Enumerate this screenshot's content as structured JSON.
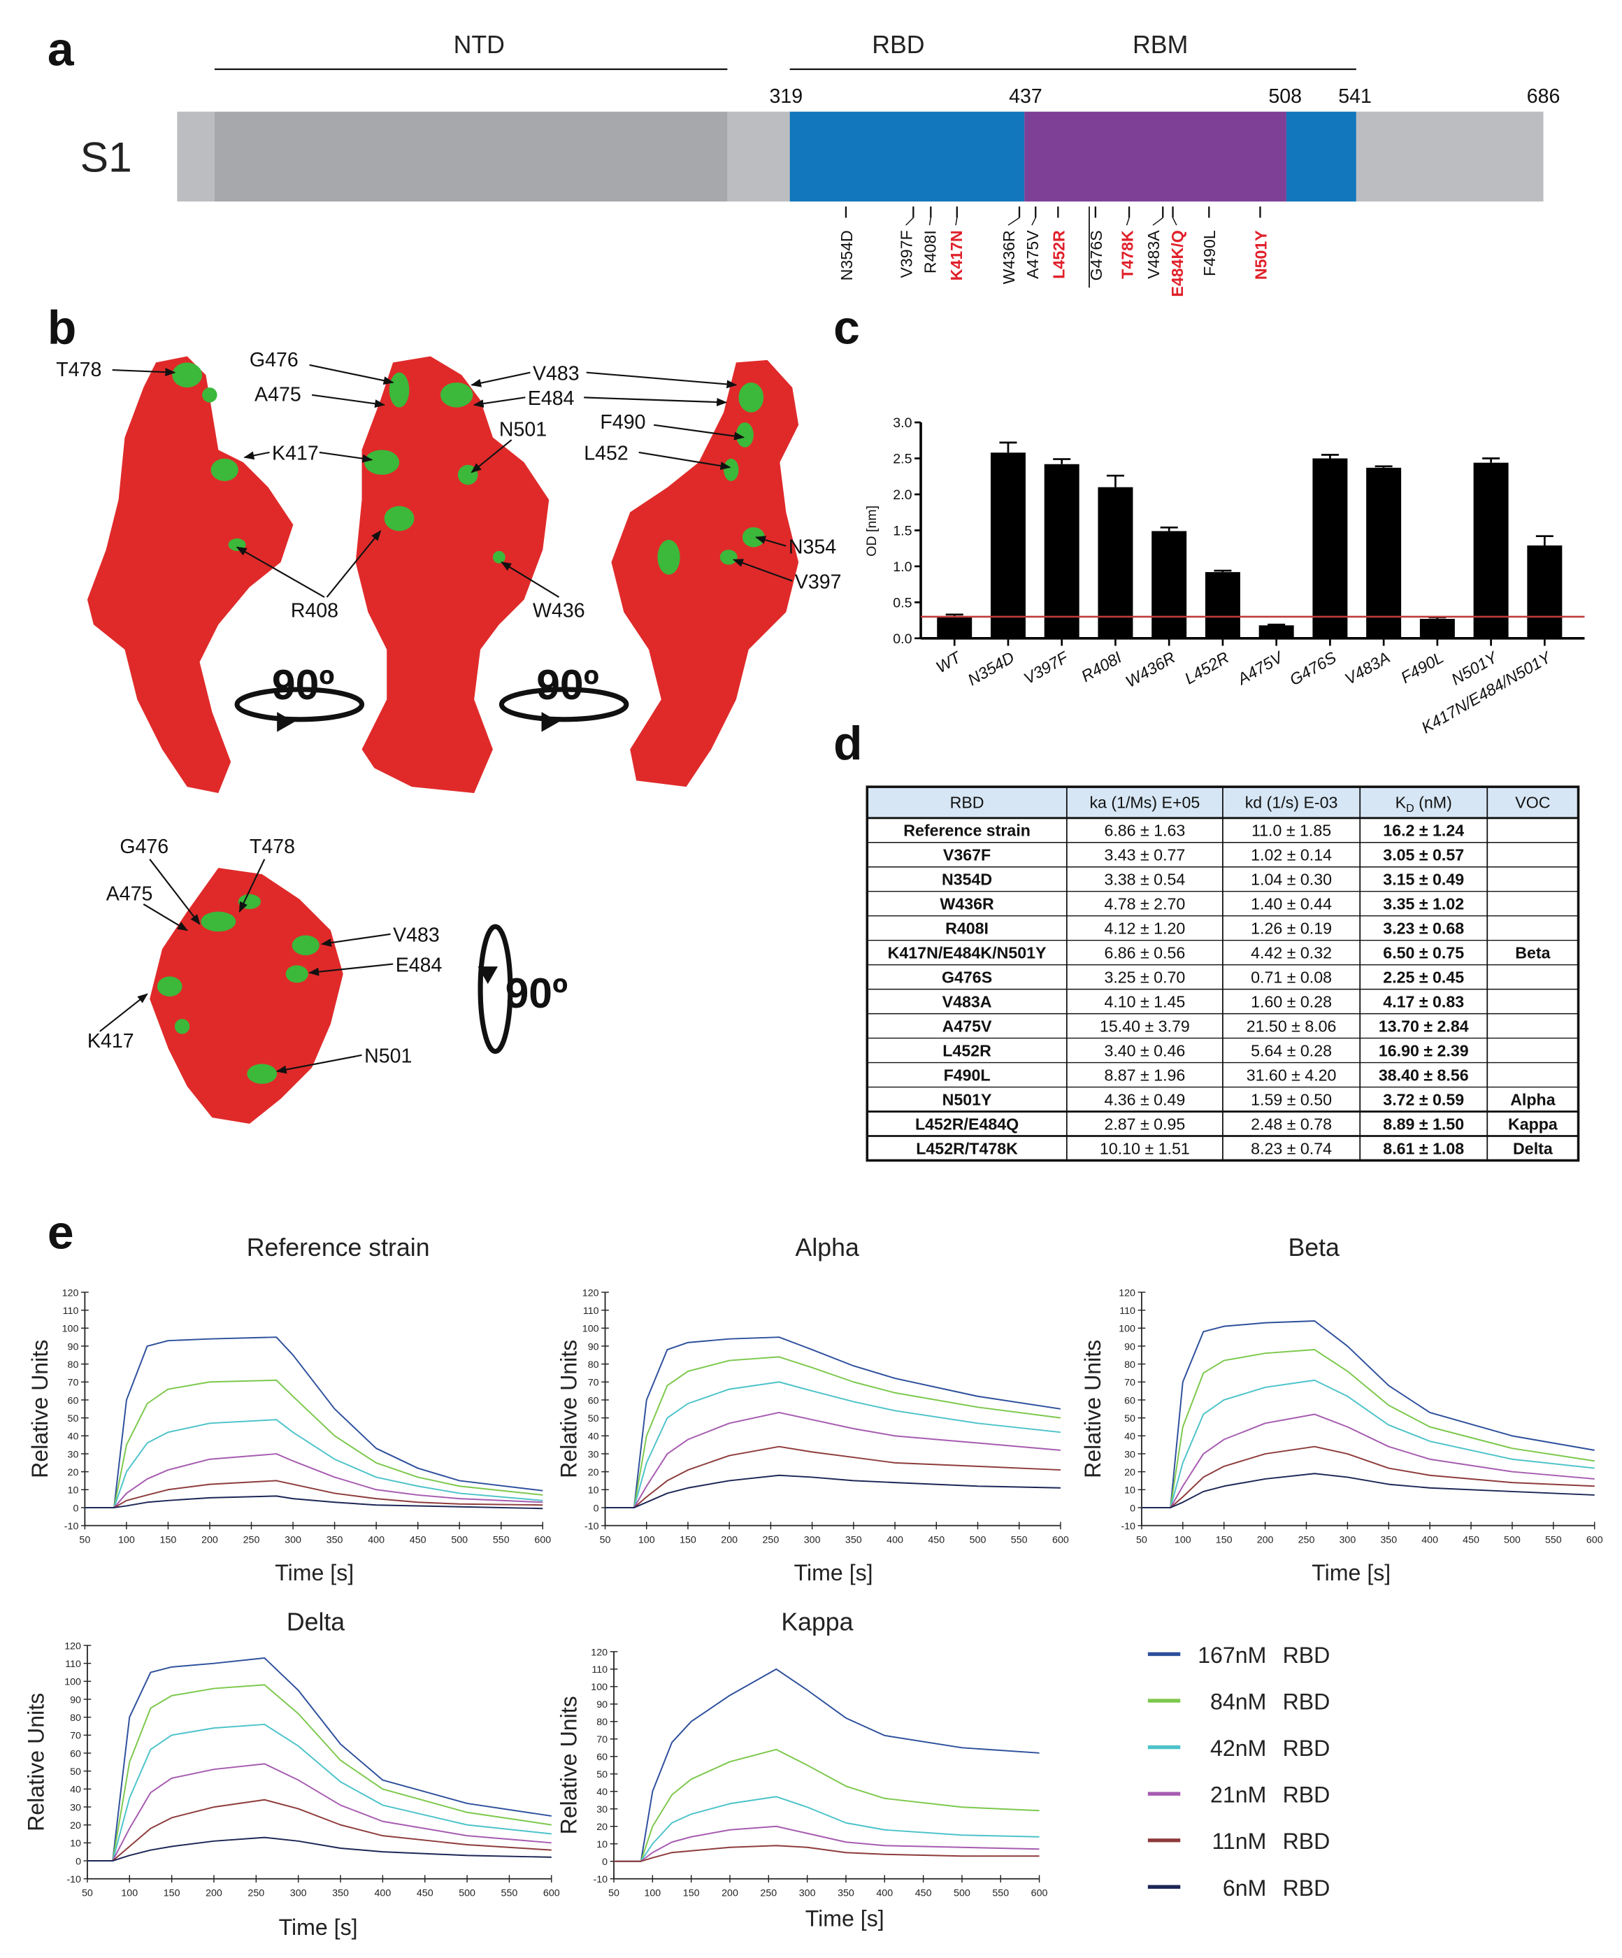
{
  "panel_labels": {
    "a": "a",
    "b": "b",
    "c": "c",
    "d": "d",
    "e": "e"
  },
  "panel_a": {
    "protein": "S1",
    "domains": {
      "ntd": "NTD",
      "rbd": "RBD",
      "rbm": "RBM"
    },
    "positions": [
      "319",
      "437",
      "508",
      "541",
      "686"
    ],
    "colors": {
      "flank": "#bcbdc0",
      "ntd": "#a7a8ab",
      "rbd": "#1277bc",
      "rbm": "#7e3f97"
    },
    "mutations": [
      {
        "label": "N354D",
        "highlight": false
      },
      {
        "label": "V397F",
        "highlight": false
      },
      {
        "label": "R408I",
        "highlight": false
      },
      {
        "label": "K417N",
        "highlight": true
      },
      {
        "label": "W436R",
        "highlight": false
      },
      {
        "label": "A475V",
        "highlight": false
      },
      {
        "label": "L452R",
        "highlight": true
      },
      {
        "label": "G476S",
        "highlight": false
      },
      {
        "label": "T478K",
        "highlight": true
      },
      {
        "label": "V483A",
        "highlight": false
      },
      {
        "label": "E484K/Q",
        "highlight": true
      },
      {
        "label": "F490L",
        "highlight": false
      },
      {
        "label": "N501Y",
        "highlight": true
      }
    ]
  },
  "panel_b": {
    "labels": [
      "T478",
      "G476",
      "A475",
      "K417",
      "R408",
      "W436",
      "V483",
      "E484",
      "N501",
      "F490",
      "L452",
      "N354",
      "V397"
    ],
    "bottom_labels": [
      "G476",
      "T478",
      "A475",
      "V483",
      "E484",
      "K417",
      "N501"
    ],
    "rotations": [
      "90º",
      "90º",
      "90º"
    ],
    "colors": {
      "surface": "#e02a2a",
      "mutation_site": "#3cb83a"
    }
  },
  "table": {
    "headers": {
      "rbd": "RBD",
      "ka": "ka (1/Ms) E+05",
      "kd": "kd (1/s) E-03",
      "kd_main": "K",
      "kd_sub": "D",
      "kd_rest": " (nM)",
      "voc": "VOC"
    },
    "header_color": "#d6e6f4",
    "rows": [
      {
        "rbd": "Reference strain",
        "ka": "6.86 ± 1.63",
        "kd": "11.0 ± 1.85",
        "KD": "16.2 ± 1.24",
        "voc": ""
      },
      {
        "rbd": "V367F",
        "ka": "3.43 ± 0.77",
        "kd": "1.02 ± 0.14",
        "KD": "3.05 ± 0.57",
        "voc": ""
      },
      {
        "rbd": "N354D",
        "ka": "3.38 ± 0.54",
        "kd": "1.04 ± 0.30",
        "KD": "3.15 ± 0.49",
        "voc": ""
      },
      {
        "rbd": "W436R",
        "ka": "4.78 ± 2.70",
        "kd": "1.40 ± 0.44",
        "KD": "3.35 ± 1.02",
        "voc": ""
      },
      {
        "rbd": "R408I",
        "ka": "4.12 ± 1.20",
        "kd": "1.26 ± 0.19",
        "KD": "3.23 ± 0.68",
        "voc": ""
      },
      {
        "rbd": "K417N/E484K/N501Y",
        "ka": "6.86 ± 0.56",
        "kd": "4.42 ± 0.32",
        "KD": "6.50 ± 0.75",
        "voc": "Beta"
      },
      {
        "rbd": "G476S",
        "ka": "3.25 ± 0.70",
        "kd": "0.71 ± 0.08",
        "KD": "2.25 ± 0.45",
        "voc": ""
      },
      {
        "rbd": "V483A",
        "ka": "4.10 ± 1.45",
        "kd": "1.60 ± 0.28",
        "KD": "4.17 ± 0.83",
        "voc": ""
      },
      {
        "rbd": "A475V",
        "ka": "15.40 ± 3.79",
        "kd": "21.50 ± 8.06",
        "KD": "13.70 ± 2.84",
        "voc": ""
      },
      {
        "rbd": "L452R",
        "ka": "3.40 ± 0.46",
        "kd": "5.64 ± 0.28",
        "KD": "16.90 ± 2.39",
        "voc": ""
      },
      {
        "rbd": "F490L",
        "ka": "8.87 ± 1.96",
        "kd": "31.60 ± 4.20",
        "KD": "38.40 ± 8.56",
        "voc": ""
      },
      {
        "rbd": "N501Y",
        "ka": "4.36 ± 0.49",
        "kd": "1.59 ± 0.50",
        "KD": "3.72 ± 0.59",
        "voc": "Alpha"
      },
      {
        "rbd": "L452R/E484Q",
        "ka": "2.87 ± 0.95",
        "kd": "2.48 ± 0.78",
        "KD": "8.89 ± 1.50",
        "voc": "Kappa"
      },
      {
        "rbd": "L452R/T478K",
        "ka": "10.10 ± 1.51",
        "kd": "8.23 ± 0.74",
        "KD": "8.61 ± 1.08",
        "voc": "Delta"
      }
    ]
  },
  "legend": [
    {
      "conc": "167nM",
      "unit": "RBD",
      "color": "#2d4f9c"
    },
    {
      "conc": "84nM",
      "unit": "RBD",
      "color": "#7cc84c"
    },
    {
      "conc": "42nM",
      "unit": "RBD",
      "color": "#4cc3c9"
    },
    {
      "conc": "21nM",
      "unit": "RBD",
      "color": "#a65bb0"
    },
    {
      "conc": "11nM",
      "unit": "RBD",
      "color": "#8e3b3b"
    },
    {
      "conc": "6nM",
      "unit": "RBD",
      "color": "#1c2656"
    }
  ],
  "chart_data": [
    {
      "type": "bar",
      "ylabel": "OD [nm]",
      "ylim": [
        0,
        3.0
      ],
      "yticks": [
        "0.0",
        "0.5",
        "1.0",
        "1.5",
        "2.0",
        "2.5",
        "3.0"
      ],
      "categories": [
        "WT",
        "N354D",
        "V397F",
        "R408I",
        "W436R",
        "L452R",
        "A475V",
        "G476S",
        "V483A",
        "F490L",
        "N501Y",
        "K417N/E484/N501Y"
      ],
      "values": [
        0.3,
        2.58,
        2.42,
        2.1,
        1.49,
        0.92,
        0.18,
        2.5,
        2.37,
        0.27,
        2.44,
        1.29
      ],
      "error_upper": [
        0.33,
        2.72,
        2.49,
        2.26,
        1.54,
        0.94,
        0.19,
        2.55,
        2.39,
        0.29,
        2.5,
        1.42
      ],
      "threshold": 0.3,
      "threshold_color": "#c0393b",
      "bar_color": "#000000"
    },
    {
      "type": "line",
      "title": "Reference strain",
      "xlabel": "Time [s]",
      "ylabel": "Relative Units",
      "xlim": [
        50,
        600
      ],
      "ylim": [
        -10,
        120
      ],
      "x": [
        50,
        85,
        100,
        125,
        150,
        200,
        280,
        300,
        350,
        400,
        450,
        500,
        600
      ],
      "series": [
        {
          "name": "167nM RBD",
          "values": [
            0,
            0,
            60,
            90,
            93,
            94,
            95,
            85,
            55,
            33,
            22,
            15,
            9.5
          ]
        },
        {
          "name": "84nM RBD",
          "values": [
            0,
            0,
            35,
            58,
            66,
            70,
            71,
            62,
            40,
            25,
            17,
            12,
            7
          ]
        },
        {
          "name": "42nM RBD",
          "values": [
            0,
            0,
            20,
            36,
            42,
            47,
            49,
            42,
            27,
            17,
            12,
            8,
            4
          ]
        },
        {
          "name": "21nM RBD",
          "values": [
            0,
            0,
            8,
            16,
            21,
            27,
            30,
            26,
            17,
            10,
            7,
            5,
            3
          ]
        },
        {
          "name": "11nM RBD",
          "values": [
            0,
            0,
            4,
            7,
            10,
            13,
            15,
            13,
            8,
            5,
            3,
            2,
            1.5
          ]
        },
        {
          "name": "6nM RBD",
          "values": [
            0,
            0,
            1,
            3,
            4,
            5.5,
            6.5,
            5,
            3,
            1.5,
            1,
            0.5,
            -0.5
          ]
        }
      ]
    },
    {
      "type": "line",
      "title": "Alpha",
      "xlabel": "Time [s]",
      "ylabel": "Relative Units",
      "xlim": [
        50,
        600
      ],
      "ylim": [
        -10,
        120
      ],
      "x": [
        50,
        85,
        100,
        125,
        150,
        200,
        260,
        300,
        350,
        400,
        500,
        600
      ],
      "series": [
        {
          "name": "167nM RBD",
          "values": [
            0,
            0,
            60,
            88,
            92,
            94,
            95,
            88,
            79,
            72,
            62,
            55
          ]
        },
        {
          "name": "84nM RBD",
          "values": [
            0,
            0,
            40,
            68,
            76,
            82,
            84,
            78,
            70,
            64,
            56,
            50
          ]
        },
        {
          "name": "42nM RBD",
          "values": [
            0,
            0,
            25,
            50,
            58,
            66,
            70,
            65,
            59,
            54,
            47,
            42
          ]
        },
        {
          "name": "21nM RBD",
          "values": [
            0,
            0,
            12,
            30,
            38,
            47,
            53,
            49,
            44,
            40,
            36,
            32
          ]
        },
        {
          "name": "11nM RBD",
          "values": [
            0,
            0,
            6,
            15,
            21,
            29,
            34,
            31,
            28,
            25,
            23,
            21
          ]
        },
        {
          "name": "6nM RBD",
          "values": [
            0,
            0,
            3,
            8,
            11,
            15,
            18,
            17,
            15,
            14,
            12,
            11
          ]
        }
      ]
    },
    {
      "type": "line",
      "title": "Beta",
      "xlabel": "Time [s]",
      "ylabel": "Relative Units",
      "xlim": [
        50,
        600
      ],
      "ylim": [
        -10,
        120
      ],
      "x": [
        50,
        85,
        100,
        125,
        150,
        200,
        260,
        300,
        350,
        400,
        500,
        600
      ],
      "series": [
        {
          "name": "167nM RBD",
          "values": [
            0,
            0,
            70,
            98,
            101,
            103,
            104,
            90,
            68,
            53,
            40,
            32
          ]
        },
        {
          "name": "84nM RBD",
          "values": [
            0,
            0,
            45,
            75,
            82,
            86,
            88,
            76,
            57,
            45,
            33,
            26
          ]
        },
        {
          "name": "42nM RBD",
          "values": [
            0,
            0,
            25,
            52,
            60,
            67,
            71,
            62,
            46,
            37,
            27,
            22
          ]
        },
        {
          "name": "21nM RBD",
          "values": [
            0,
            0,
            12,
            30,
            38,
            47,
            52,
            45,
            34,
            27,
            20,
            16
          ]
        },
        {
          "name": "11nM RBD",
          "values": [
            0,
            0,
            6,
            17,
            23,
            30,
            34,
            30,
            22,
            18,
            14,
            12
          ]
        },
        {
          "name": "6nM RBD",
          "values": [
            0,
            0,
            3,
            9,
            12,
            16,
            19,
            17,
            13,
            11,
            9,
            7
          ]
        }
      ]
    },
    {
      "type": "line",
      "title": "Delta",
      "xlabel": "Time [s]",
      "ylabel": "Relative Units",
      "xlim": [
        50,
        600
      ],
      "ylim": [
        -10,
        120
      ],
      "x": [
        50,
        80,
        100,
        125,
        150,
        200,
        260,
        300,
        350,
        400,
        500,
        600
      ],
      "series": [
        {
          "name": "167nM RBD",
          "values": [
            0,
            0,
            80,
            105,
            108,
            110,
            113,
            95,
            65,
            45,
            32,
            25
          ]
        },
        {
          "name": "84nM RBD",
          "values": [
            0,
            0,
            55,
            85,
            92,
            96,
            98,
            82,
            56,
            40,
            27,
            20
          ]
        },
        {
          "name": "42nM RBD",
          "values": [
            0,
            0,
            35,
            62,
            70,
            74,
            76,
            64,
            44,
            31,
            20,
            15
          ]
        },
        {
          "name": "21nM RBD",
          "values": [
            0,
            0,
            18,
            38,
            46,
            51,
            54,
            45,
            31,
            22,
            14,
            10
          ]
        },
        {
          "name": "11nM RBD",
          "values": [
            0,
            0,
            8,
            18,
            24,
            30,
            34,
            29,
            20,
            14,
            9,
            6
          ]
        },
        {
          "name": "6nM RBD",
          "values": [
            0,
            0,
            3,
            6,
            8,
            11,
            13,
            11,
            7,
            5,
            3,
            2
          ]
        }
      ]
    },
    {
      "type": "line",
      "title": "Kappa",
      "xlabel": "Time [s]",
      "ylabel": "Relative Units",
      "xlim": [
        50,
        600
      ],
      "ylim": [
        -10,
        120
      ],
      "x": [
        50,
        85,
        100,
        125,
        150,
        200,
        260,
        300,
        350,
        400,
        500,
        600
      ],
      "series": [
        {
          "name": "167nM RBD",
          "values": [
            0,
            0,
            40,
            68,
            80,
            95,
            110,
            98,
            82,
            72,
            65,
            62
          ]
        },
        {
          "name": "84nM RBD",
          "values": [
            0,
            0,
            20,
            38,
            47,
            57,
            64,
            55,
            43,
            36,
            31,
            29
          ]
        },
        {
          "name": "42nM RBD",
          "values": [
            0,
            0,
            10,
            22,
            27,
            33,
            37,
            31,
            22,
            18,
            15,
            14
          ]
        },
        {
          "name": "21nM RBD",
          "values": [
            0,
            0,
            5,
            11,
            14,
            18,
            20,
            16,
            11,
            9,
            8,
            7
          ]
        },
        {
          "name": "11nM RBD",
          "values": [
            0,
            0,
            2,
            5,
            6,
            8,
            9,
            8,
            5,
            4,
            3,
            3
          ]
        }
      ]
    }
  ]
}
